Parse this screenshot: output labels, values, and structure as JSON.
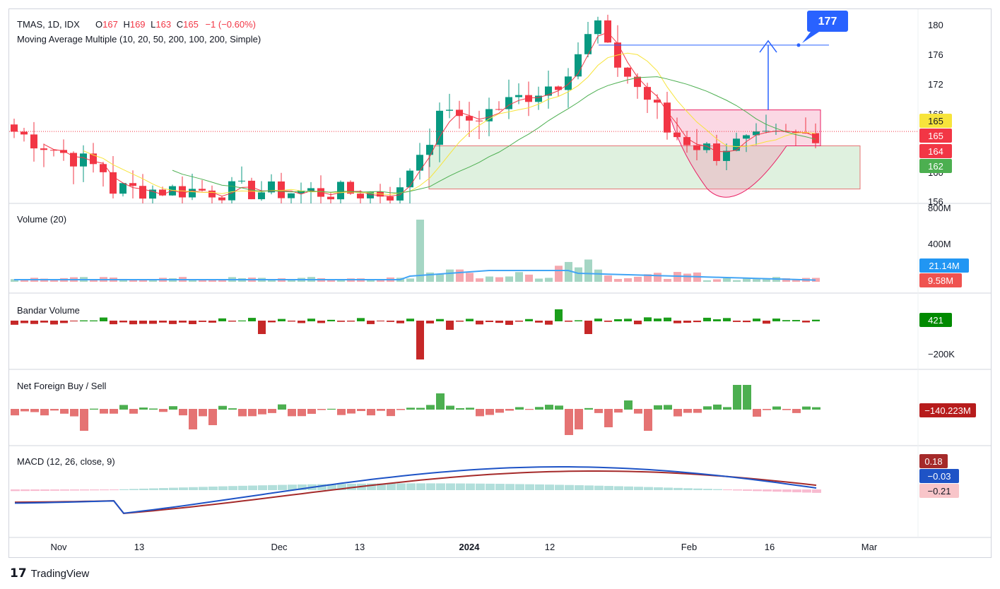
{
  "header": {
    "symbol": "TMAS, 1D, IDX",
    "o_label": "O",
    "o_val": "167",
    "h_label": "H",
    "h_val": "169",
    "l_label": "L",
    "l_val": "163",
    "c_label": "C",
    "c_val": "165",
    "change": "−1 (−0.60%)",
    "ma_label": "Moving Average Multiple (10, 20, 50, 200, 100, 200, Simple)"
  },
  "panes": {
    "volume_title": "Volume (20)",
    "bandar_title": "Bandar Volume",
    "foreign_title": "Net Foreign Buy / Sell",
    "macd_title": "MACD (12, 26, close, 9)"
  },
  "price_axis": [
    "180",
    "176",
    "172",
    "168",
    "160",
    "156"
  ],
  "volume_axis": [
    "800M",
    "400M"
  ],
  "bandar_axis": [
    "−200K"
  ],
  "badges": {
    "target": "177",
    "ma_yellow": "165",
    "last_price": "165",
    "ma_red": "164",
    "ma_green": "162",
    "vol_ma": "21.14M",
    "vol_last": "9.58M",
    "bandar": "421",
    "foreign": "−140.223M",
    "macd_signal": "0.18",
    "macd_line": "−0.03",
    "macd_hist": "−0.21"
  },
  "time_axis": [
    "Nov",
    "13",
    "Dec",
    "13",
    "2024",
    "12",
    "Feb",
    "16",
    "Mar"
  ],
  "brand": {
    "logo_text": "TradingView"
  },
  "colors": {
    "up": "#089981",
    "down": "#f23645",
    "ma10": "#f23645",
    "ma20": "#f7e43b",
    "ma50": "#4caf50",
    "ma200": "#43a047",
    "vol_ma": "#42a5f5",
    "macd_line": "#1e53c6",
    "macd_signal": "#a52a2a",
    "target": "#2962ff"
  },
  "chart_data": {
    "type": "candlestick",
    "x": [
      "2024-01-25",
      "2024-01-26",
      "2024-01-29",
      "2024-01-30",
      "2024-01-31",
      "2024-02-01",
      "2024-02-02",
      "2024-02-05",
      "2024-02-06",
      "2024-02-07",
      "2024-02-08",
      "2024-02-09",
      "2024-02-12",
      "2024-02-13",
      "2024-02-14",
      "2024-02-15",
      "2024-02-16",
      "2024-02-19",
      "2024-02-20",
      "2024-02-21",
      "2024-02-22",
      "2024-02-23"
    ],
    "close": [
      163,
      165,
      166,
      165,
      164,
      163,
      160,
      163,
      166,
      164,
      165,
      164,
      167,
      165,
      164,
      163,
      162,
      163,
      162,
      164,
      166,
      165
    ],
    "high_last": 169,
    "low_last": 163,
    "open_last": 167,
    "ylim": [
      155,
      182
    ],
    "target_level": 177,
    "support_zone": [
      157,
      163
    ]
  }
}
